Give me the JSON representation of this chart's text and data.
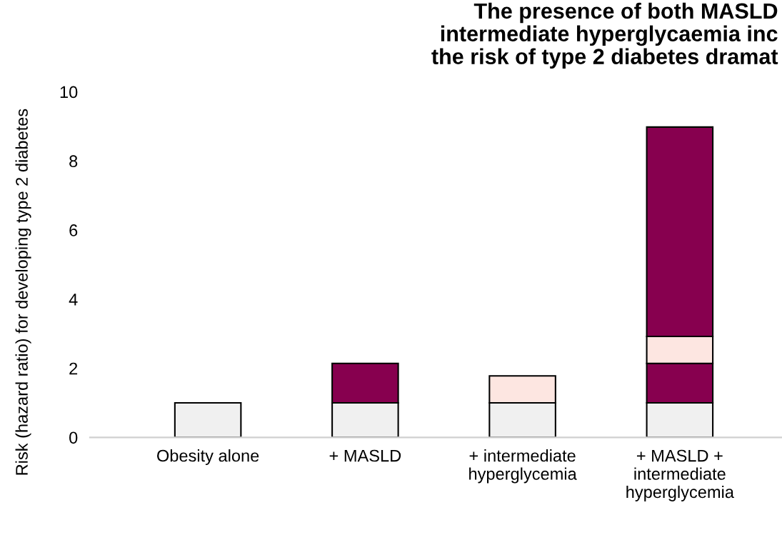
{
  "chart_data": {
    "type": "bar",
    "stacked": true,
    "title": "The presence of both MASLD\nintermediate hyperglycaemia inc\nthe risk of type 2 diabetes dramat",
    "ylabel": "Risk (hazard ratio) for developing type 2 diabetes",
    "categories": [
      "Obesity alone",
      "+ MASLD",
      "+ intermediate\nhyperglycemia",
      "+ MASLD +\nintermediate\nhyperglycemia"
    ],
    "series": [
      {
        "color": "#f0f0f0",
        "values": [
          1.0,
          1.0,
          1.0,
          1.0
        ]
      },
      {
        "color": "#87004f",
        "values": [
          null,
          1.14,
          null,
          1.14
        ]
      },
      {
        "color": "#fde6e1",
        "values": [
          null,
          null,
          0.78,
          0.78
        ]
      },
      {
        "color": "#87004f",
        "values": [
          null,
          null,
          null,
          6.06
        ]
      }
    ],
    "ylim": [
      0,
      10
    ],
    "yticks": [
      0,
      2,
      4,
      6,
      8,
      10
    ],
    "grid": false,
    "legend": false
  }
}
